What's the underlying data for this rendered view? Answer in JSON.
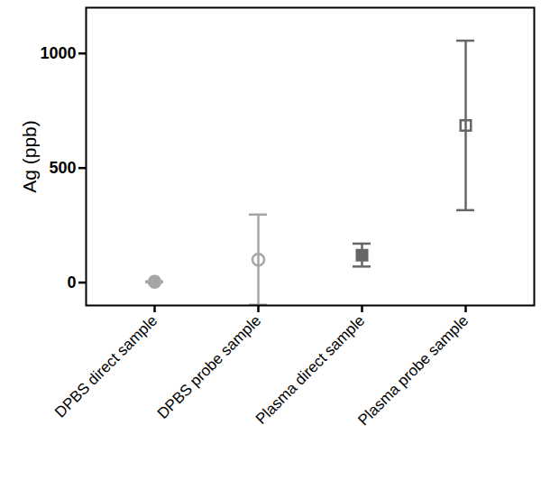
{
  "chart_data": {
    "type": "scatter",
    "y_label": "Ag (ppb)",
    "categories": [
      "DPBS direct sample",
      "DPBS probe sample",
      "Plasma direct sample",
      "Plasma probe sample"
    ],
    "values": [
      3,
      100,
      120,
      686
    ],
    "errors": [
      2,
      197,
      50,
      370
    ],
    "colors": [
      "#a6a6a6",
      "#a6a6a6",
      "#666666",
      "#666666"
    ],
    "markers": [
      "circle",
      "circle-open",
      "square",
      "square-open"
    ],
    "ylim": [
      -100,
      1200
    ],
    "yticks": [
      0,
      500,
      1000
    ],
    "grid": false
  }
}
